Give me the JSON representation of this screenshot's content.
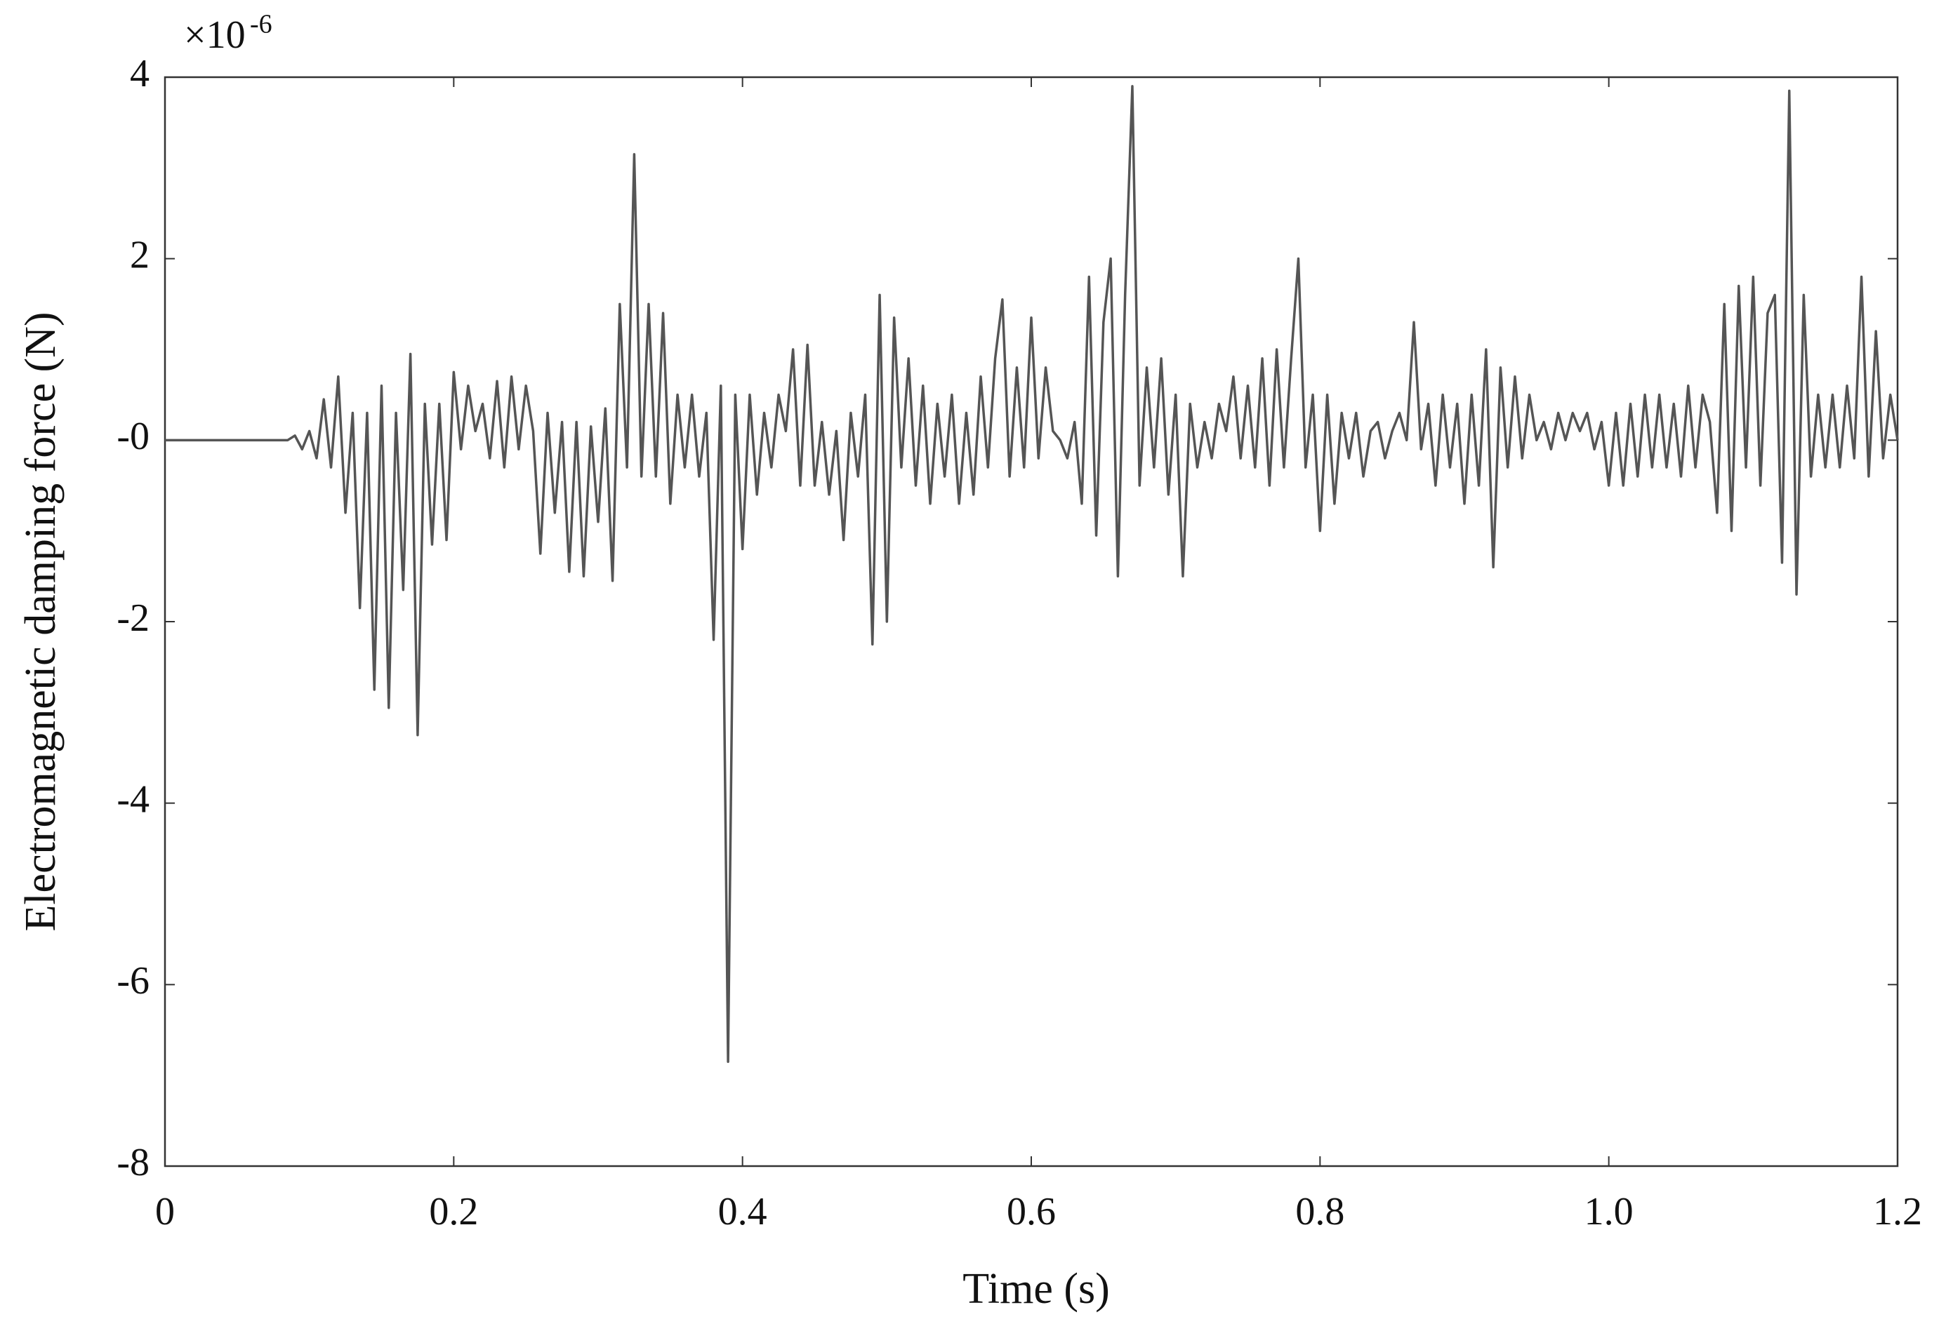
{
  "chart_data": {
    "type": "line",
    "xlabel": "Time (s)",
    "ylabel": "Electromagnetic damping force (N)",
    "y_scale_base": "×10",
    "y_scale_exponent": "-6",
    "color": "#555555",
    "xlim": [
      0,
      1.2
    ],
    "ylim": [
      -8,
      4
    ],
    "xticks": [
      0,
      0.2,
      0.4,
      0.6,
      0.8,
      {
        "value": 1,
        "label": "1.0"
      },
      1.2
    ],
    "yticks": [
      -8,
      -6,
      -4,
      -2,
      {
        "value": 0,
        "label": "-0"
      },
      2,
      4
    ],
    "x": [
      0,
      0.005,
      0.01,
      0.015,
      0.02,
      0.025,
      0.03,
      0.035,
      0.04,
      0.045,
      0.05,
      0.055,
      0.06,
      0.065,
      0.07,
      0.075,
      0.08,
      0.085,
      0.09,
      0.095,
      0.1,
      0.105,
      0.11,
      0.115,
      0.12,
      0.125,
      0.13,
      0.135,
      0.14,
      0.145,
      0.15,
      0.155,
      0.16,
      0.165,
      0.17,
      0.175,
      0.18,
      0.185,
      0.19,
      0.195,
      0.2,
      0.205,
      0.21,
      0.215,
      0.22,
      0.225,
      0.23,
      0.235,
      0.24,
      0.245,
      0.25,
      0.255,
      0.26,
      0.265,
      0.27,
      0.275,
      0.28,
      0.285,
      0.29,
      0.295,
      0.3,
      0.305,
      0.31,
      0.315,
      0.32,
      0.325,
      0.33,
      0.335,
      0.34,
      0.345,
      0.35,
      0.355,
      0.36,
      0.365,
      0.37,
      0.375,
      0.38,
      0.385,
      0.39,
      0.395,
      0.4,
      0.405,
      0.41,
      0.415,
      0.42,
      0.425,
      0.43,
      0.435,
      0.44,
      0.445,
      0.45,
      0.455,
      0.46,
      0.465,
      0.47,
      0.475,
      0.48,
      0.485,
      0.49,
      0.495,
      0.5,
      0.505,
      0.51,
      0.515,
      0.52,
      0.525,
      0.53,
      0.535,
      0.54,
      0.545,
      0.55,
      0.555,
      0.56,
      0.565,
      0.57,
      0.575,
      0.58,
      0.585,
      0.59,
      0.595,
      0.6,
      0.605,
      0.61,
      0.615,
      0.62,
      0.625,
      0.63,
      0.635,
      0.64,
      0.645,
      0.65,
      0.655,
      0.66,
      0.665,
      0.67,
      0.675,
      0.68,
      0.685,
      0.69,
      0.695,
      0.7,
      0.705,
      0.71,
      0.715,
      0.72,
      0.725,
      0.73,
      0.735,
      0.74,
      0.745,
      0.75,
      0.755,
      0.76,
      0.765,
      0.77,
      0.775,
      0.78,
      0.785,
      0.79,
      0.795,
      0.8,
      0.805,
      0.81,
      0.815,
      0.82,
      0.825,
      0.83,
      0.835,
      0.84,
      0.845,
      0.85,
      0.855,
      0.86,
      0.865,
      0.87,
      0.875,
      0.88,
      0.885,
      0.89,
      0.895,
      0.9,
      0.905,
      0.91,
      0.915,
      0.92,
      0.925,
      0.93,
      0.935,
      0.94,
      0.945,
      0.95,
      0.955,
      0.96,
      0.965,
      0.97,
      0.975,
      0.98,
      0.985,
      0.99,
      0.995,
      1,
      1.005,
      1.01,
      1.015,
      1.02,
      1.025,
      1.03,
      1.035,
      1.04,
      1.045,
      1.05,
      1.055,
      1.06,
      1.065,
      1.07,
      1.075,
      1.08,
      1.085,
      1.09,
      1.095,
      1.1,
      1.105,
      1.11,
      1.115,
      1.12,
      1.125,
      1.13,
      1.135,
      1.14,
      1.145,
      1.15,
      1.155,
      1.16,
      1.165,
      1.17,
      1.175,
      1.18,
      1.185,
      1.19,
      1.195,
      1.2
    ],
    "values": [
      0,
      0,
      0,
      0,
      0,
      0,
      0,
      0,
      0,
      0,
      0,
      0,
      0,
      0,
      0,
      0,
      0,
      0,
      0.05,
      -0.1,
      0.1,
      -0.2,
      0.45,
      -0.3,
      0.7,
      -0.8,
      0.3,
      -1.85,
      0.3,
      -2.75,
      0.6,
      -2.95,
      0.3,
      -1.65,
      0.95,
      -3.25,
      0.4,
      -1.15,
      0.4,
      -1.1,
      0.75,
      -0.1,
      0.6,
      0.1,
      0.4,
      -0.2,
      0.65,
      -0.3,
      0.7,
      -0.1,
      0.6,
      0.1,
      -1.25,
      0.3,
      -0.8,
      0.2,
      -1.45,
      0.2,
      -1.5,
      0.15,
      -0.9,
      0.35,
      -1.55,
      1.5,
      -0.3,
      3.15,
      -0.4,
      1.5,
      -0.4,
      1.4,
      -0.7,
      0.5,
      -0.3,
      0.5,
      -0.4,
      0.3,
      -2.2,
      0.6,
      -6.85,
      0.5,
      -1.2,
      0.5,
      -0.6,
      0.3,
      -0.3,
      0.5,
      0.1,
      1.0,
      -0.5,
      1.05,
      -0.5,
      0.2,
      -0.6,
      0.1,
      -1.1,
      0.3,
      -0.4,
      0.5,
      -2.25,
      1.6,
      -2.0,
      1.35,
      -0.3,
      0.9,
      -0.5,
      0.6,
      -0.7,
      0.4,
      -0.4,
      0.5,
      -0.7,
      0.3,
      -0.6,
      0.7,
      -0.3,
      0.9,
      1.55,
      -0.4,
      0.8,
      -0.3,
      1.35,
      -0.2,
      0.8,
      0.1,
      0.0,
      -0.2,
      0.2,
      -0.7,
      1.8,
      -1.05,
      1.3,
      2.0,
      -1.5,
      1.6,
      3.9,
      -0.5,
      0.8,
      -0.3,
      0.9,
      -0.6,
      0.5,
      -1.5,
      0.4,
      -0.3,
      0.2,
      -0.2,
      0.4,
      0.1,
      0.7,
      -0.2,
      0.6,
      -0.3,
      0.9,
      -0.5,
      1.0,
      -0.3,
      0.9,
      2.0,
      -0.3,
      0.5,
      -1.0,
      0.5,
      -0.7,
      0.3,
      -0.2,
      0.3,
      -0.4,
      0.1,
      0.2,
      -0.2,
      0.1,
      0.3,
      0.0,
      1.3,
      -0.1,
      0.4,
      -0.5,
      0.5,
      -0.3,
      0.4,
      -0.7,
      0.5,
      -0.5,
      1.0,
      -1.4,
      0.8,
      -0.3,
      0.7,
      -0.2,
      0.5,
      0.0,
      0.2,
      -0.1,
      0.3,
      0.0,
      0.3,
      0.1,
      0.3,
      -0.1,
      0.2,
      -0.5,
      0.3,
      -0.5,
      0.4,
      -0.4,
      0.5,
      -0.3,
      0.5,
      -0.3,
      0.4,
      -0.4,
      0.6,
      -0.3,
      0.5,
      0.2,
      -0.8,
      1.5,
      -1.0,
      1.7,
      -0.3,
      1.8,
      -0.5,
      1.4,
      1.6,
      -1.35,
      3.85,
      -1.7,
      1.6,
      -0.4,
      0.5,
      -0.3,
      0.5,
      -0.3,
      0.6,
      -0.2,
      1.8,
      -0.4,
      1.2,
      -0.2,
      0.5,
      0.0
    ]
  }
}
